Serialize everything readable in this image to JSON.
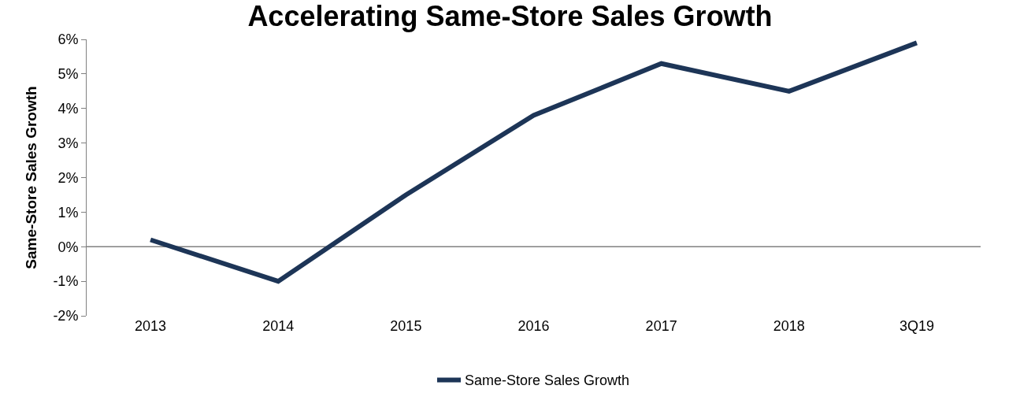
{
  "chart_data": {
    "type": "line",
    "title": "Accelerating Same-Store Sales Growth",
    "ylabel": "Same-Store Sales Growth",
    "categories": [
      "2013",
      "2014",
      "2015",
      "2016",
      "2017",
      "2018",
      "3Q19"
    ],
    "series": [
      {
        "name": "Same-Store Sales Growth",
        "color": "#1d3557",
        "values": [
          0.2,
          -1.0,
          1.5,
          3.8,
          5.3,
          4.5,
          5.9
        ]
      }
    ],
    "ylim": [
      -2,
      6
    ],
    "yticks": [
      {
        "value": -2,
        "label": "-2%"
      },
      {
        "value": -1,
        "label": "-1%"
      },
      {
        "value": 0,
        "label": "0%"
      },
      {
        "value": 1,
        "label": "1%"
      },
      {
        "value": 2,
        "label": "2%"
      },
      {
        "value": 3,
        "label": "3%"
      },
      {
        "value": 4,
        "label": "4%"
      },
      {
        "value": 5,
        "label": "5%"
      },
      {
        "value": 6,
        "label": "6%"
      }
    ],
    "ref_lines": [
      {
        "axis": "y",
        "value": 0,
        "color": "#808080",
        "line_style": "solid"
      }
    ],
    "legend": "bottom",
    "marker": "none",
    "line_style": "solid"
  }
}
